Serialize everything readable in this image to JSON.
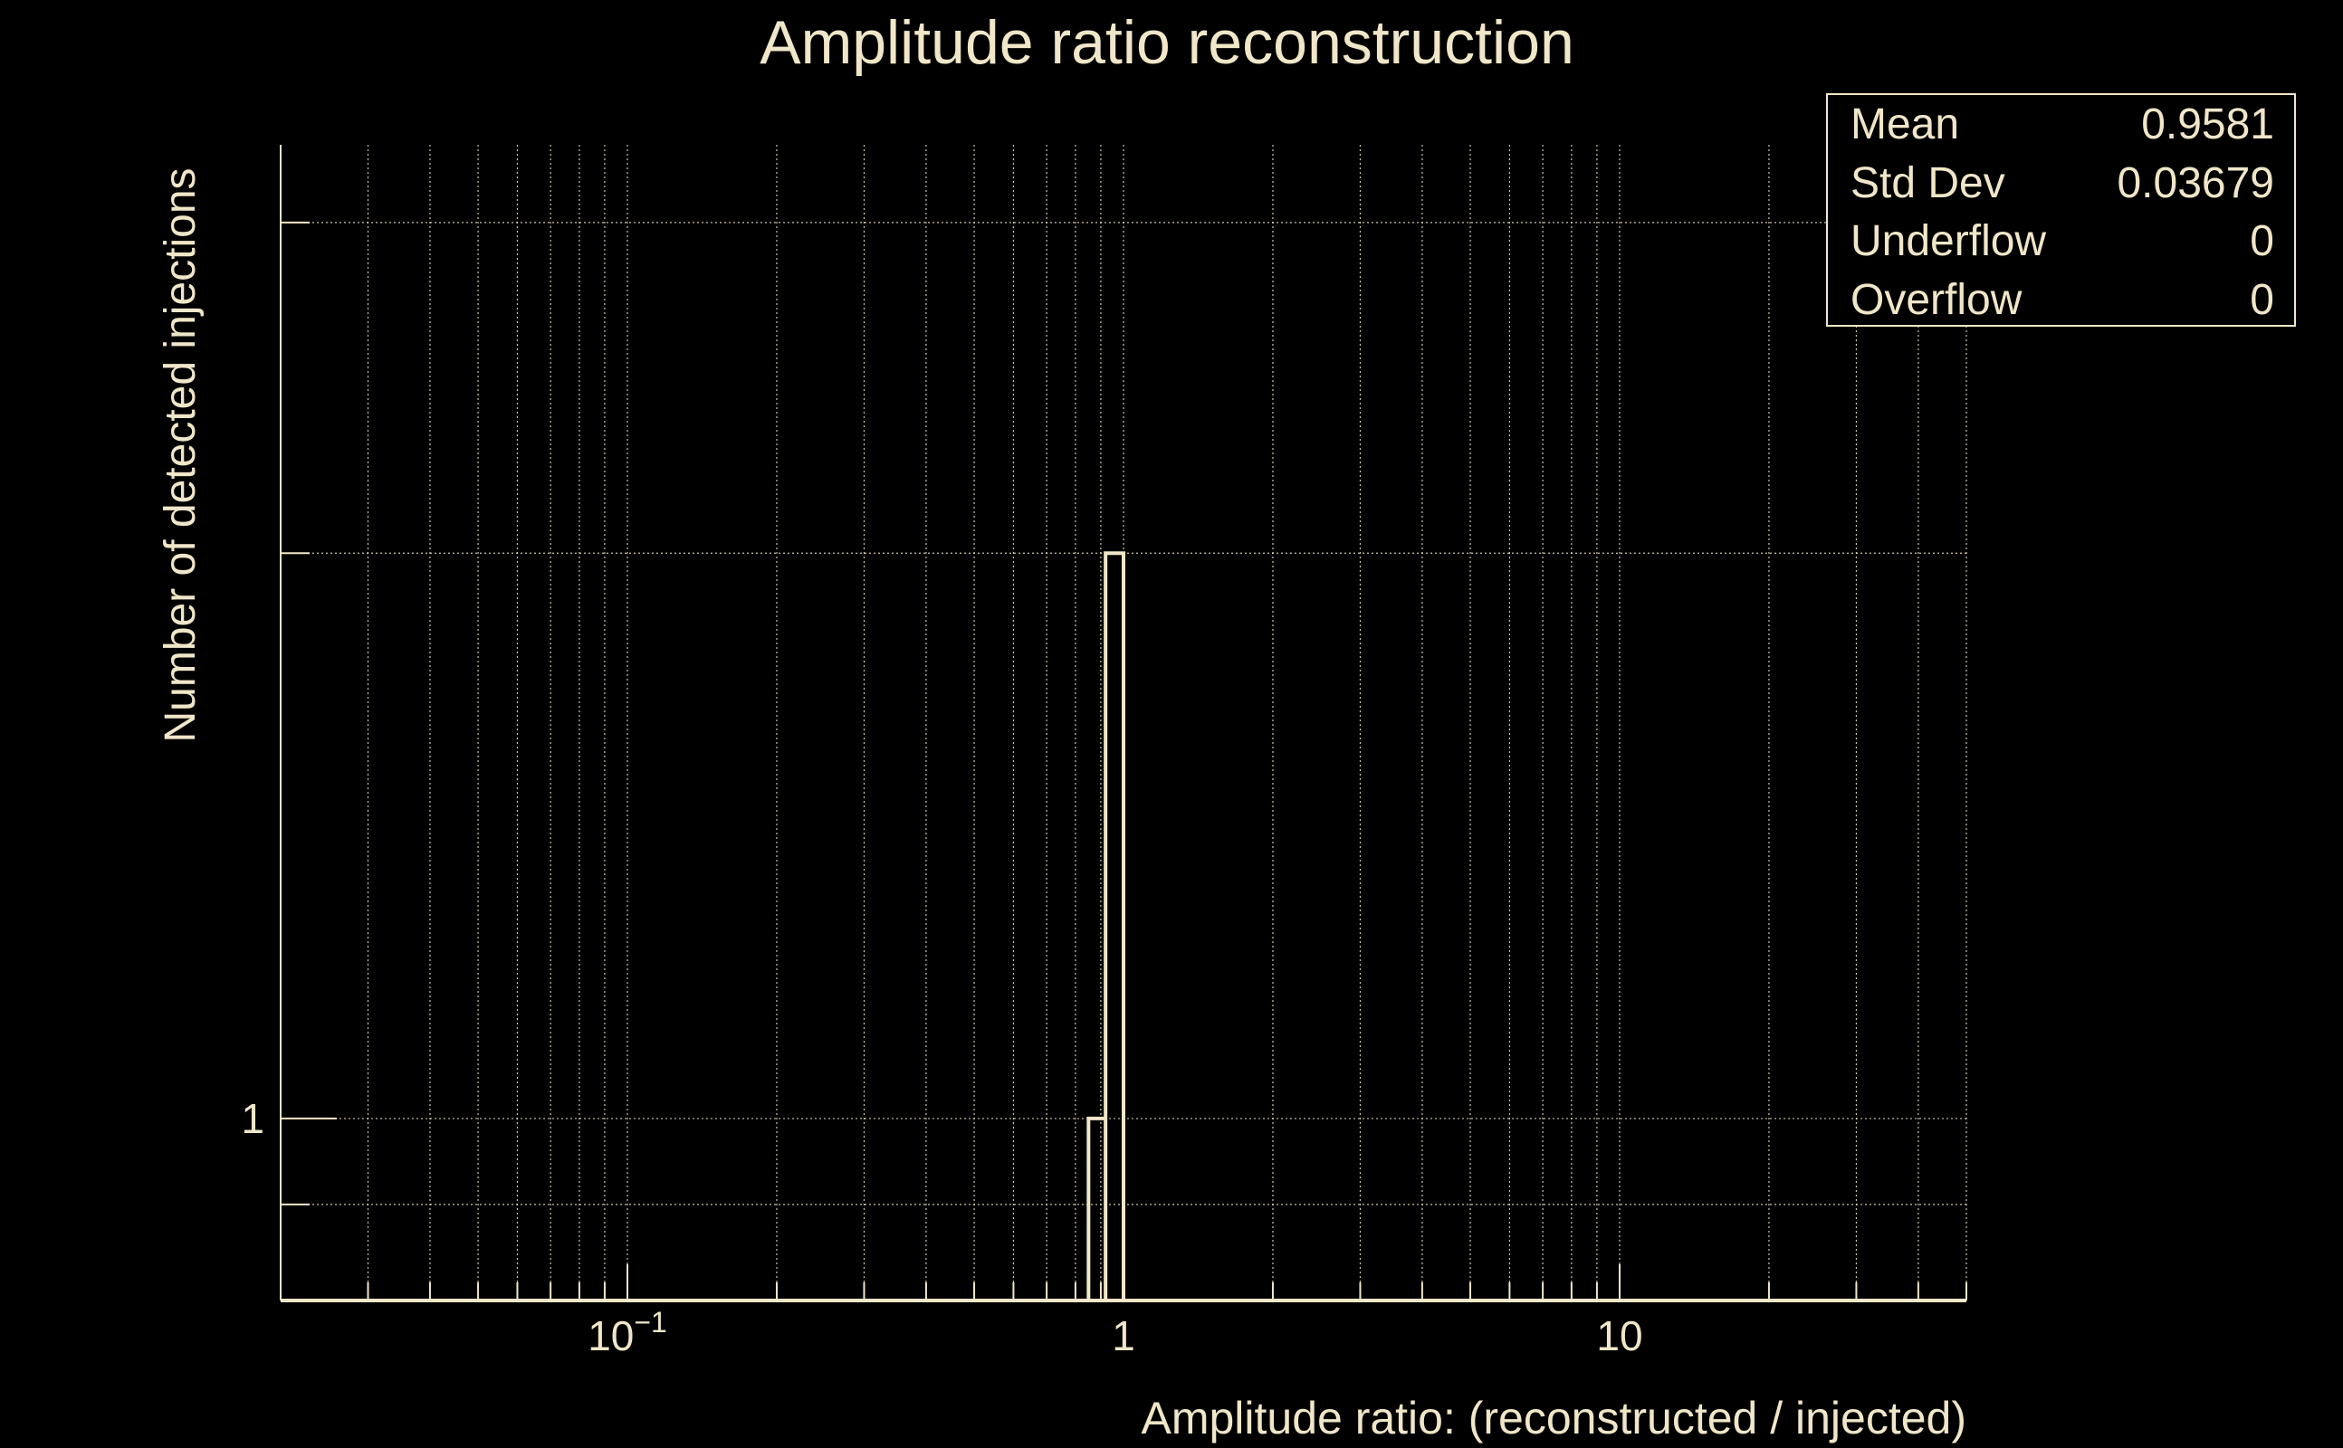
{
  "chart_data": {
    "type": "bar",
    "title": "Amplitude ratio reconstruction",
    "xlabel": "Amplitude ratio: (reconstructed / injected)",
    "ylabel": "Number of detected injections",
    "x_scale": "log",
    "y_scale": "log",
    "xlim": [
      0.02,
      50
    ],
    "ylim": [
      0.8,
      3.3
    ],
    "grid": true,
    "x_tick_labels": [
      {
        "value": 0.1,
        "base": "10",
        "exp": "−1"
      },
      {
        "value": 1,
        "base": "1",
        "exp": ""
      },
      {
        "value": 10,
        "base": "10",
        "exp": ""
      }
    ],
    "y_tick_labels": [
      {
        "value": 1,
        "label": "1"
      }
    ],
    "y_gridlines": [
      0.9,
      1,
      2,
      3
    ],
    "bins": [
      {
        "low": 0.85,
        "high": 0.92,
        "count": 1
      },
      {
        "low": 0.92,
        "high": 1.0,
        "count": 2
      }
    ],
    "stats_box": {
      "position": "top-right",
      "rows": [
        {
          "label": "Mean",
          "value": "0.9581"
        },
        {
          "label": "Std Dev",
          "value": "0.03679"
        },
        {
          "label": "Underflow",
          "value": "0"
        },
        {
          "label": "Overflow",
          "value": "0"
        }
      ]
    },
    "color": "#f0e6c8"
  }
}
